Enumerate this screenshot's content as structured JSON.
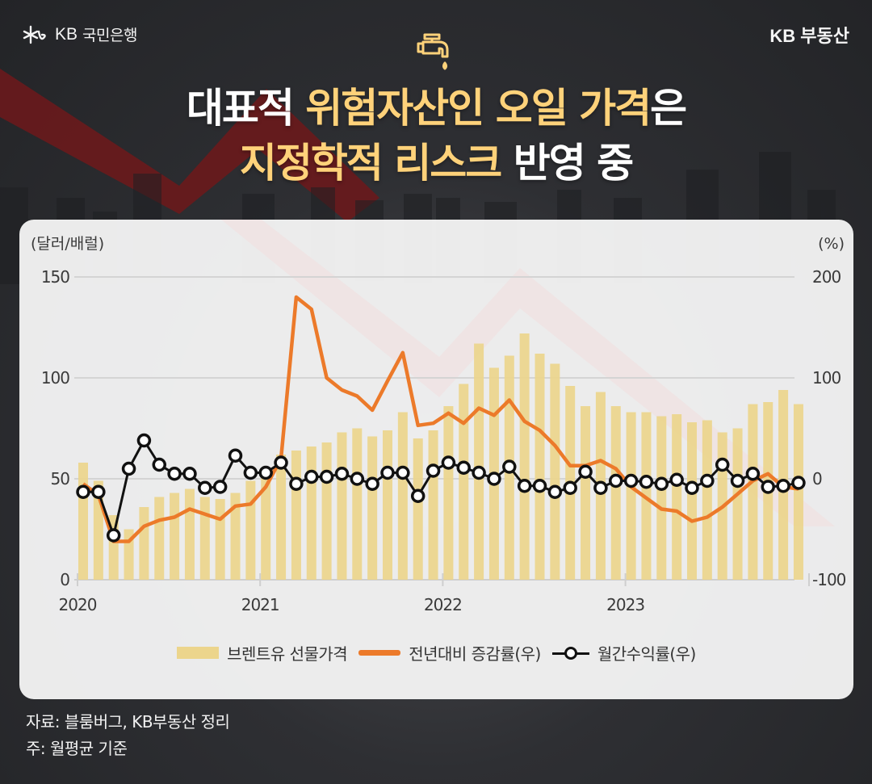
{
  "header": {
    "bank_logo_text": "KB",
    "bank_name": "국민은행",
    "brand_right": "KB 부동산",
    "icon": "water-tap-icon"
  },
  "title": {
    "line1": [
      {
        "text": "대표적 ",
        "color": "white"
      },
      {
        "text": "위험자산인 오일 가격",
        "color": "yellow"
      },
      {
        "text": "은",
        "color": "white"
      }
    ],
    "line2": [
      {
        "text": "지정학적 리스크",
        "color": "yellow"
      },
      {
        "text": " 반영 중",
        "color": "white"
      }
    ],
    "l1a": "대표적 ",
    "l1b": "위험자산인 오일 가격",
    "l1c": "은",
    "l2a": "지정학적 리스크",
    "l2b": " 반영 중"
  },
  "colors": {
    "bar": "#ecd58c",
    "yoy_line": "#ec7a2a",
    "monthly_line": "#111111",
    "title_accent": "#ffd27a",
    "background": "#2e2f33"
  },
  "chart_data": {
    "type": "bar",
    "title": "대표적 위험자산인 오일 가격은 지정학적 리스크 반영 중",
    "left_axis_label": "(달러/배럴)",
    "right_axis_label": "(%)",
    "left_ylim": [
      0,
      150
    ],
    "right_ylim": [
      -100,
      200
    ],
    "left_ticks": [
      "0",
      "50",
      "100",
      "150"
    ],
    "right_ticks": [
      "-100",
      "0",
      "100",
      "200"
    ],
    "x_tick_labels": [
      "2020",
      "2021",
      "2022",
      "2023"
    ],
    "grid": true,
    "legend_position": "bottom",
    "categories": [
      "2020-01",
      "2020-02",
      "2020-03",
      "2020-04",
      "2020-05",
      "2020-06",
      "2020-07",
      "2020-08",
      "2020-09",
      "2020-10",
      "2020-11",
      "2020-12",
      "2021-01",
      "2021-02",
      "2021-03",
      "2021-04",
      "2021-05",
      "2021-06",
      "2021-07",
      "2021-08",
      "2021-09",
      "2021-10",
      "2021-11",
      "2021-12",
      "2022-01",
      "2022-02",
      "2022-03",
      "2022-04",
      "2022-05",
      "2022-06",
      "2022-07",
      "2022-08",
      "2022-09",
      "2022-10",
      "2022-11",
      "2022-12",
      "2023-01",
      "2023-02",
      "2023-03",
      "2023-04",
      "2023-05",
      "2023-06",
      "2023-07",
      "2023-08",
      "2023-09",
      "2023-10",
      "2023-11",
      "2023-12"
    ],
    "series": [
      {
        "name": "브렌트유 선물가격",
        "type": "bar",
        "axis": "left",
        "values": [
          58,
          49,
          32,
          25,
          36,
          41,
          43,
          45,
          41,
          40,
          43,
          49,
          54,
          62,
          64,
          66,
          68,
          73,
          75,
          71,
          74,
          83,
          70,
          74,
          86,
          97,
          117,
          105,
          111,
          122,
          112,
          107,
          96,
          86,
          93,
          86,
          83,
          83,
          81,
          82,
          78,
          79,
          73,
          75,
          87,
          88,
          94,
          87
        ]
      },
      {
        "name": "전년대비 증감률(우)",
        "type": "line",
        "axis": "right",
        "values": [
          -5,
          -16,
          -62,
          -62,
          -47,
          -41,
          -38,
          -30,
          -35,
          -40,
          -27,
          -25,
          -8,
          20,
          180,
          168,
          100,
          88,
          82,
          68,
          97,
          125,
          53,
          55,
          65,
          55,
          70,
          63,
          78,
          57,
          48,
          33,
          13,
          13,
          18,
          10,
          -8,
          -19,
          -30,
          -32,
          -42,
          -38,
          -28,
          -15,
          -2,
          5,
          -8,
          -10
        ]
      },
      {
        "name": "월간수익률(우)",
        "type": "line",
        "axis": "right",
        "marker": "circle",
        "values": [
          -13,
          -13,
          -56,
          10,
          38,
          14,
          5,
          5,
          -9,
          -8,
          23,
          6,
          6,
          16,
          -5,
          2,
          2,
          5,
          0,
          -5,
          6,
          6,
          -17,
          8,
          16,
          11,
          6,
          0,
          12,
          -7,
          -7,
          -13,
          -9,
          7,
          -9,
          -2,
          -2,
          -3,
          -5,
          -1,
          -9,
          -2,
          14,
          -2,
          5,
          -8,
          -7,
          -4
        ]
      }
    ]
  },
  "legend": {
    "bar_label": "브렌트유 선물가격",
    "yoy_label": "전년대비 증감률(우)",
    "monthly_label": "월간수익률(우)"
  },
  "footer": {
    "source": "자료: 블룸버그, KB부동산 정리",
    "note": "주: 월평균 기준"
  }
}
